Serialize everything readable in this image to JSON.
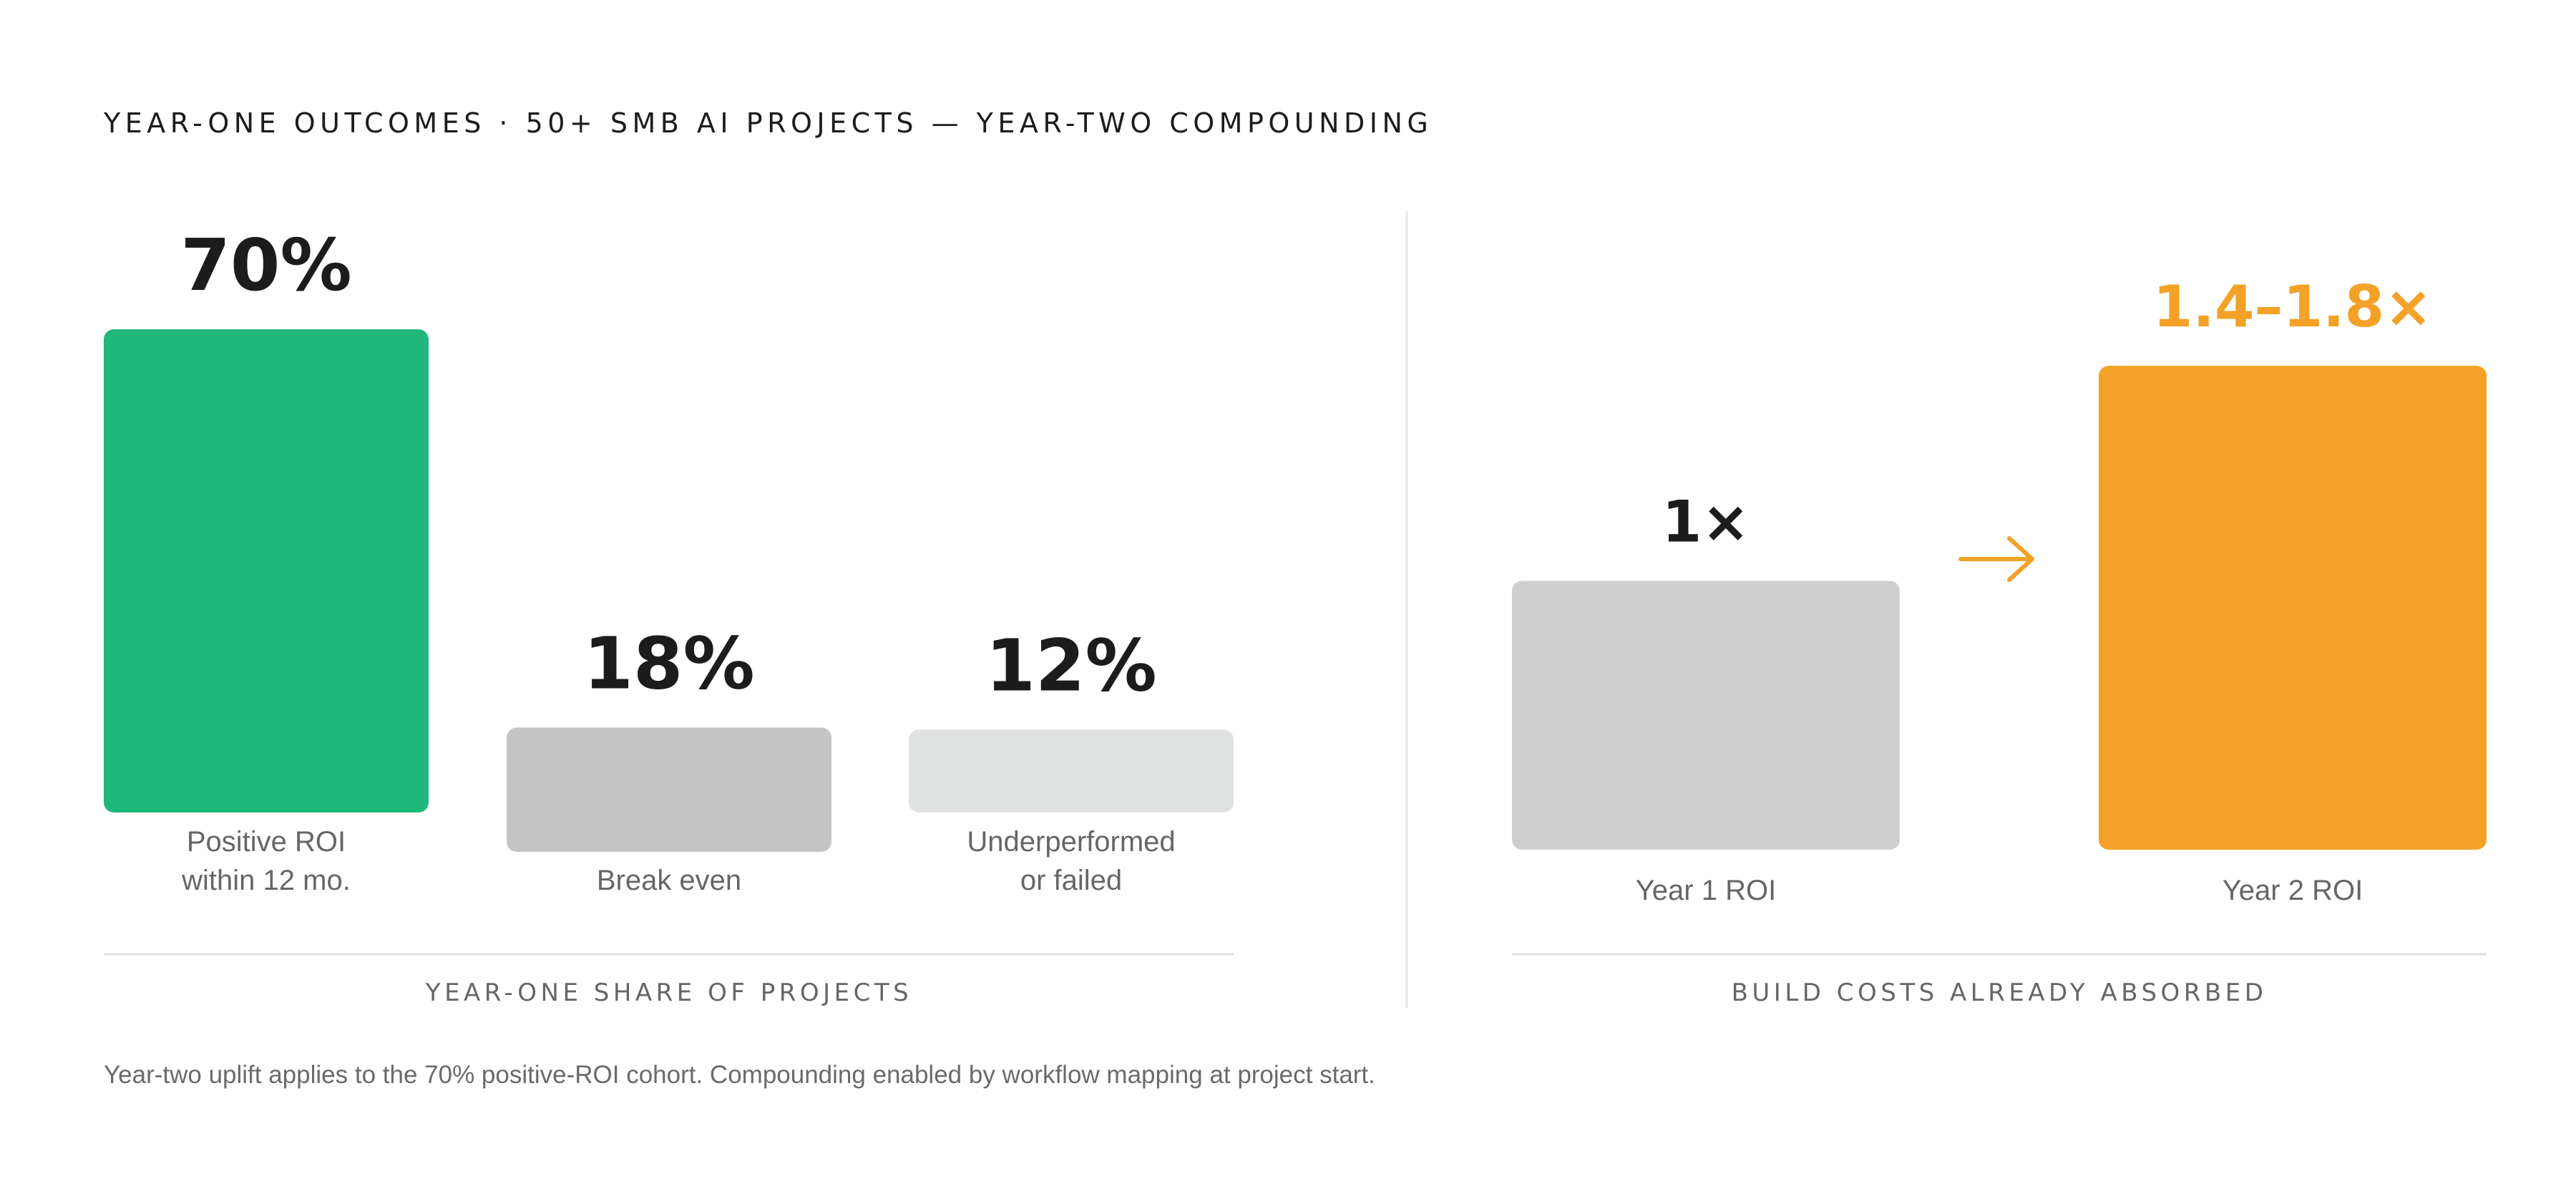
{
  "title": "YEAR-ONE OUTCOMES · 50+ SMB AI PROJECTS — YEAR-TWO COMPOUNDING",
  "footnote": "Year-two uplift applies to the 70% positive-ROI cohort. Compounding enabled by workflow mapping at project start.",
  "colors": {
    "positive": "#1fb87a",
    "break_even": "#c5c5c5",
    "underperformed": "#e0e1e1",
    "year1": "#cecece",
    "year2": "#f3a227",
    "accent_text": "#f3a227",
    "text_dark": "#1c1c1c",
    "text_muted": "#666666",
    "rule": "#dedede"
  },
  "chart_data": [
    {
      "type": "bar",
      "categories": [
        "Positive ROI\nwithin 12 mo.",
        "Break even",
        "Underperformed\nor failed"
      ],
      "values": [
        70,
        18,
        12
      ],
      "value_labels": [
        "70%",
        "18%",
        "12%"
      ],
      "unit": "%",
      "xlabel": "YEAR-ONE SHARE OF PROJECTS",
      "ylabel": "",
      "ylim": [
        0,
        70
      ],
      "grid": false
    },
    {
      "type": "bar",
      "categories": [
        "Year 1 ROI",
        "Year 2 ROI"
      ],
      "values": [
        1,
        1.8
      ],
      "value_range": [
        [
          1,
          1
        ],
        [
          1.4,
          1.8
        ]
      ],
      "value_labels": [
        "1×",
        "1.4–1.8×"
      ],
      "unit": "×",
      "xlabel": "BUILD COSTS ALREADY ABSORBED",
      "ylabel": "",
      "ylim": [
        0,
        1.8
      ],
      "grid": false,
      "connector": "arrow-right-icon"
    }
  ]
}
